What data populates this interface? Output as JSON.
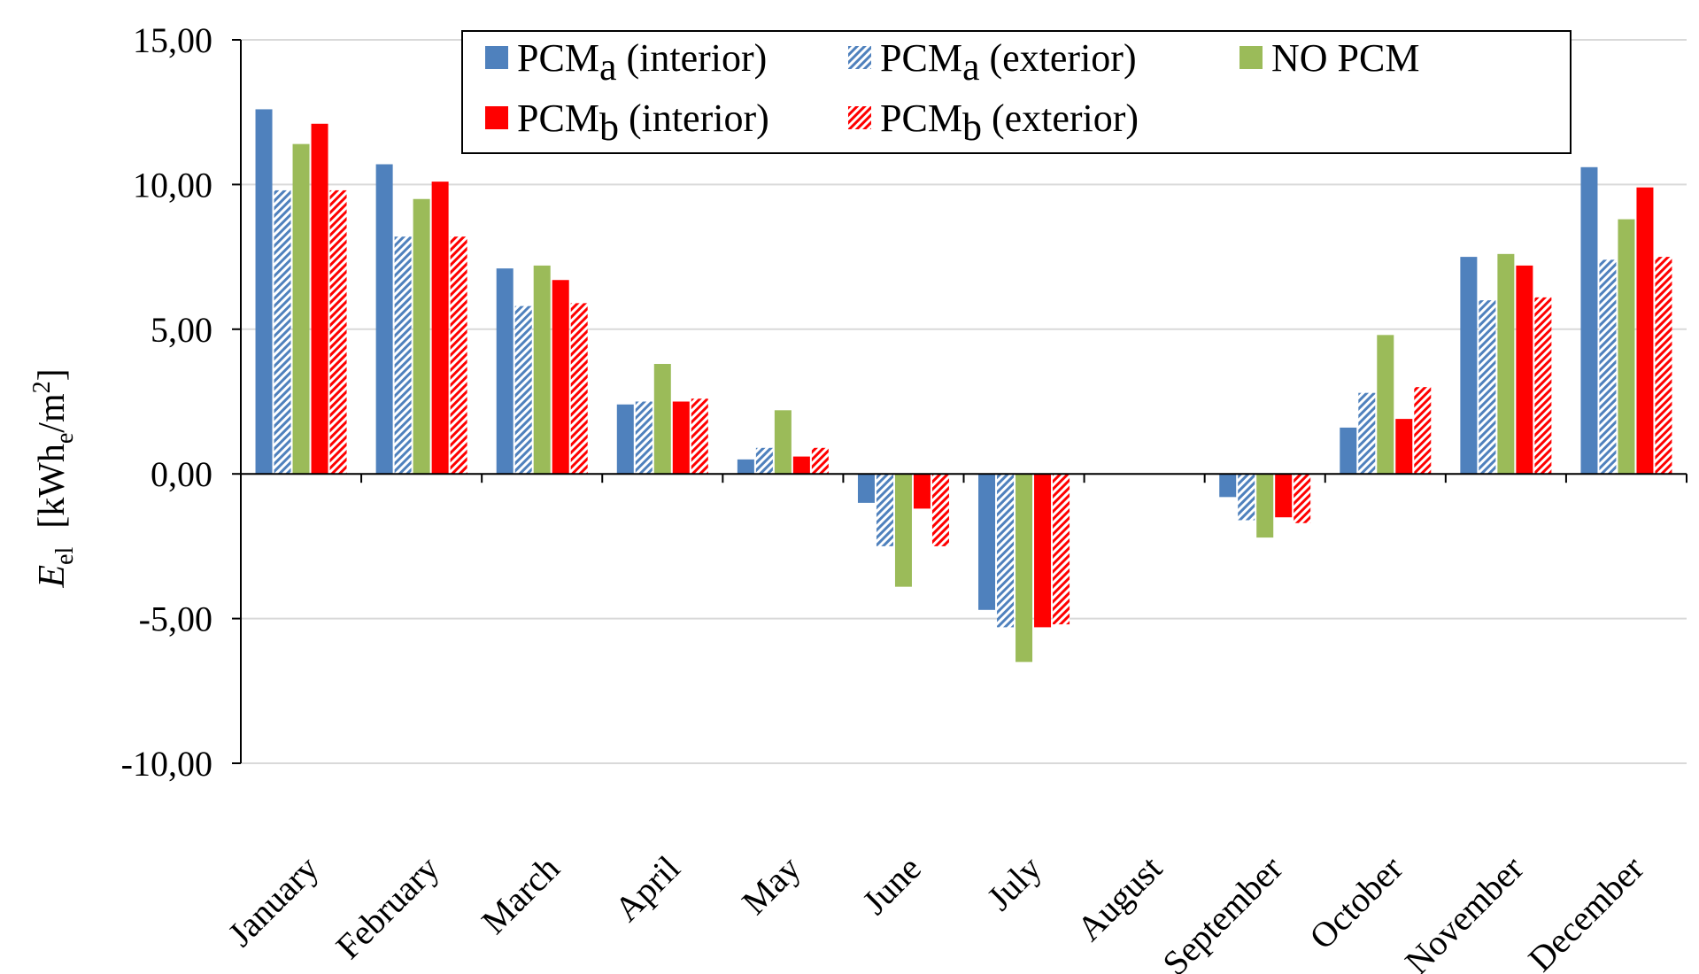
{
  "chart_data": {
    "type": "bar",
    "categories": [
      "January",
      "February",
      "March",
      "April",
      "May",
      "June",
      "July",
      "August",
      "September",
      "October",
      "November",
      "December"
    ],
    "series": [
      {
        "name": "PCM",
        "sub": "a",
        "suffix": " (interior)",
        "pattern": "solid",
        "color": "#4f81bd",
        "values": [
          12.6,
          10.7,
          7.1,
          2.4,
          0.5,
          -1.0,
          -4.7,
          0.0,
          -0.8,
          1.6,
          7.5,
          10.6
        ]
      },
      {
        "name": "PCM",
        "sub": "a",
        "suffix": " (exterior)",
        "pattern": "hatch",
        "color": "#4f81bd",
        "values": [
          9.8,
          8.2,
          5.8,
          2.5,
          0.9,
          -2.5,
          -5.3,
          0.0,
          -1.6,
          2.8,
          6.0,
          7.4
        ]
      },
      {
        "name": "NO PCM",
        "sub": "",
        "suffix": "",
        "pattern": "solid",
        "color": "#9bbb59",
        "values": [
          11.4,
          9.5,
          7.2,
          3.8,
          2.2,
          -3.9,
          -6.5,
          0.0,
          -2.2,
          4.8,
          7.6,
          8.8
        ]
      },
      {
        "name": "PCM",
        "sub": "b",
        "suffix": " (interior)",
        "pattern": "solid",
        "color": "#ff0000",
        "values": [
          12.1,
          10.1,
          6.7,
          2.5,
          0.6,
          -1.2,
          -5.3,
          0.0,
          -1.5,
          1.9,
          7.2,
          9.9
        ]
      },
      {
        "name": "PCM",
        "sub": "b",
        "suffix": " (exterior)",
        "pattern": "hatch",
        "color": "#ff0000",
        "values": [
          9.8,
          8.2,
          5.9,
          2.6,
          0.9,
          -2.5,
          -5.2,
          0.0,
          -1.7,
          3.0,
          6.1,
          7.5
        ]
      }
    ],
    "yticks": [
      "15,00",
      "10,00",
      "5,00",
      "0,00",
      "-5,00",
      "-10,00"
    ],
    "ylim": [
      -10,
      15
    ],
    "ylabel": {
      "symbol": "E",
      "symbol_sub": "el",
      "unit_open": "  [kWh",
      "unit_sub": "e",
      "unit_mid": "/m",
      "unit_sup": "2",
      "unit_close": "]"
    },
    "grid": true,
    "legend_position": "top-center"
  }
}
